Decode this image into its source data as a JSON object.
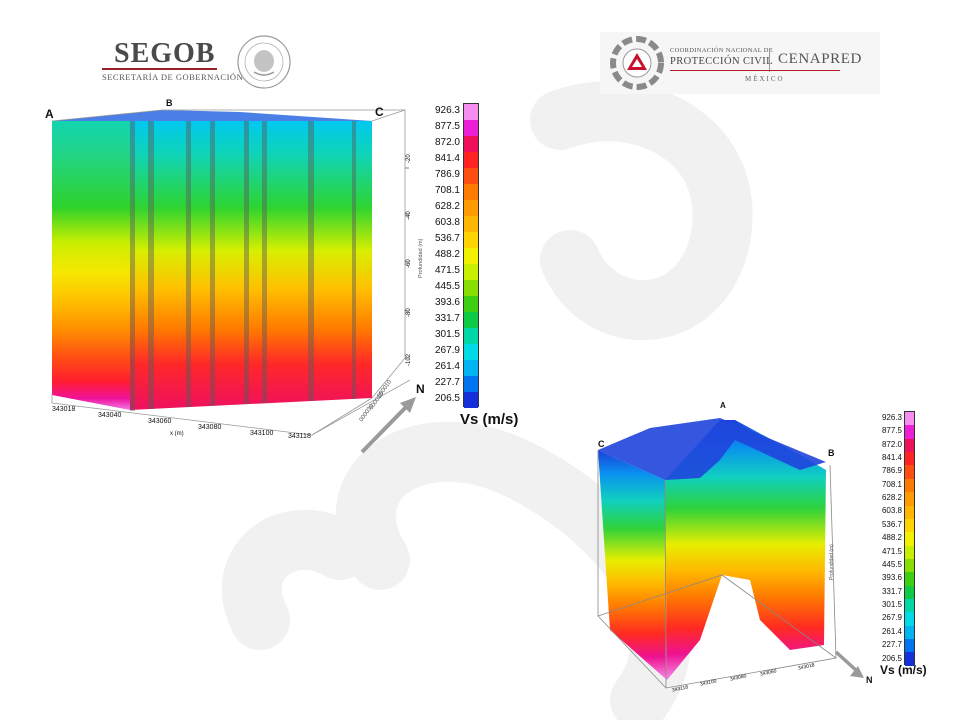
{
  "header": {
    "segob_word": "SEGOB",
    "segob_subtitle": "SECRETARÍA DE GOBERNACIÓN",
    "cenapred_line1": "COORDINACIÓN NACIONAL DE",
    "cenapred_line2": "PROTECCIÓN CIVIL",
    "cenapred_word": "CENAPRED",
    "cenapred_country": "MÉXICO"
  },
  "colors": {
    "seal_gray": "#9a9a9a",
    "segob_red": "#9a1d2a",
    "cenapred_red": "#b51a2a"
  },
  "icons": [
    "segob-seal-icon",
    "cenapred-logo-icon",
    "north-arrow-icon"
  ],
  "legend": {
    "title": "Vs (m/s)",
    "values": [
      "926.3",
      "877.5",
      "872.0",
      "841.4",
      "786.9",
      "708.1",
      "628.2",
      "603.8",
      "536.7",
      "488.2",
      "471.5",
      "445.5",
      "393.6",
      "331.7",
      "301.5",
      "267.9",
      "261.4",
      "227.7",
      "206.5"
    ],
    "colors": [
      "#f58ef0",
      "#ec1fd6",
      "#ee105a",
      "#ff2323",
      "#ff4e12",
      "#ff7a00",
      "#ff9a00",
      "#ffb600",
      "#ffd400",
      "#f2f200",
      "#c8ee00",
      "#88de00",
      "#3ecf14",
      "#0fca44",
      "#00d7a6",
      "#00d9e6",
      "#00b4f2",
      "#0073f0",
      "#1530d8"
    ]
  },
  "model1": {
    "corner_labels": [
      "A",
      "B",
      "C"
    ],
    "x_ticks": [
      "343018",
      "343040",
      "343060",
      "343080",
      "343100",
      "343118"
    ],
    "x_axis_label": "x (m)",
    "z_ticks": [
      "-20",
      "-40",
      "-60",
      "-80",
      "-102"
    ],
    "z_axis_label": "Profundidad (m)",
    "north_label": "N"
  },
  "model2": {
    "corner_labels": [
      "A",
      "B",
      "C"
    ],
    "x_ticks": [
      "343118",
      "343100",
      "343080",
      "343060",
      "343018"
    ],
    "z_axis_label": "Profundidad (m)",
    "north_label": "N"
  }
}
